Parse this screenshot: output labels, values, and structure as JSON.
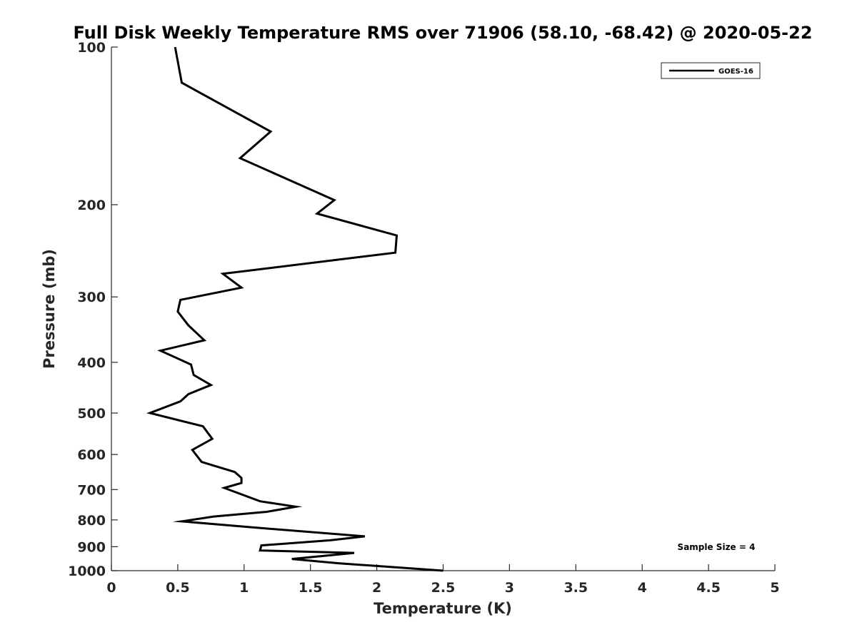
{
  "chart_data": {
    "type": "line",
    "title": "Full Disk Weekly Temperature RMS over 71906 (58.10, -68.42) @ 2020-05-22",
    "xlabel": "Temperature (K)",
    "ylabel": "Pressure (mb)",
    "xlim": [
      0,
      5
    ],
    "ylim": [
      100,
      1000
    ],
    "y_scale": "log",
    "y_reversed": true,
    "x_ticks": [
      "0",
      "0.5",
      "1",
      "1.5",
      "2",
      "2.5",
      "3",
      "3.5",
      "4",
      "4.5",
      "5"
    ],
    "y_ticks": [
      "100",
      "200",
      "300",
      "400",
      "500",
      "600",
      "700",
      "800",
      "900",
      "1000"
    ],
    "grid": false,
    "legend_position": "top-right",
    "series": [
      {
        "name": "GOES-16",
        "color": "#000000",
        "points": [
          [
            0.48,
            100
          ],
          [
            0.53,
            117
          ],
          [
            1.2,
            145
          ],
          [
            0.97,
            163
          ],
          [
            1.68,
            196
          ],
          [
            1.55,
            208
          ],
          [
            2.15,
            229
          ],
          [
            2.14,
            247
          ],
          [
            0.84,
            271
          ],
          [
            0.98,
            288
          ],
          [
            0.52,
            304
          ],
          [
            0.5,
            320
          ],
          [
            0.58,
            340
          ],
          [
            0.7,
            363
          ],
          [
            0.37,
            380
          ],
          [
            0.6,
            404
          ],
          [
            0.62,
            423
          ],
          [
            0.75,
            442
          ],
          [
            0.58,
            460
          ],
          [
            0.52,
            475
          ],
          [
            0.29,
            500
          ],
          [
            0.69,
            530
          ],
          [
            0.76,
            560
          ],
          [
            0.61,
            588
          ],
          [
            0.68,
            620
          ],
          [
            0.93,
            648
          ],
          [
            0.98,
            665
          ],
          [
            0.98,
            680
          ],
          [
            0.85,
            695
          ],
          [
            1.12,
            737
          ],
          [
            1.39,
            755
          ],
          [
            1.17,
            772
          ],
          [
            0.77,
            788
          ],
          [
            0.53,
            805
          ],
          [
            1.15,
            830
          ],
          [
            1.91,
            860
          ],
          [
            1.65,
            875
          ],
          [
            1.13,
            895
          ],
          [
            1.12,
            915
          ],
          [
            1.83,
            925
          ],
          [
            1.36,
            950
          ],
          [
            1.71,
            968
          ],
          [
            2.5,
            1000
          ]
        ]
      }
    ],
    "annotations": [
      "Sample Size = 4"
    ]
  }
}
